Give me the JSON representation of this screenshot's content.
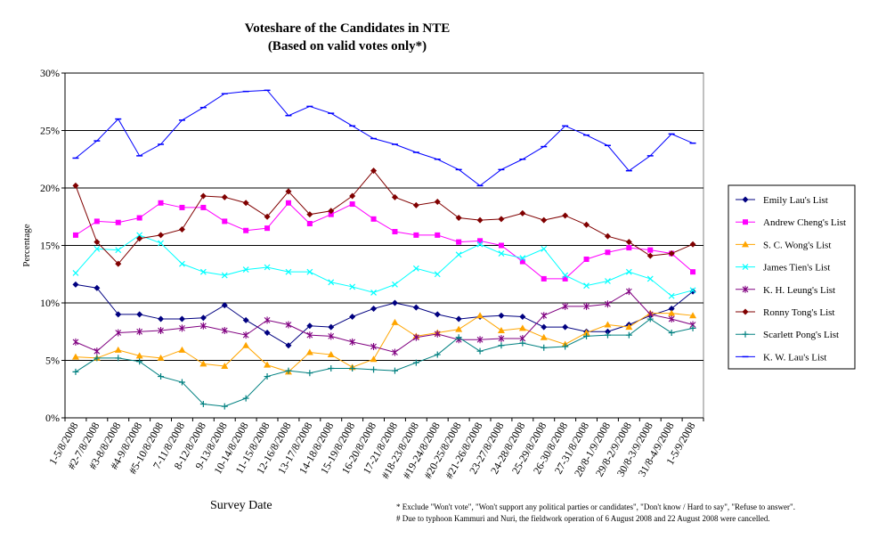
{
  "chart_data": {
    "type": "line",
    "title": "Voteshare of the Candidates in NTE",
    "subtitle": "(Based on valid votes only*)",
    "xlabel": "Survey Date",
    "ylabel": "Percentage",
    "ylim": [
      0,
      30
    ],
    "yticks": [
      "0%",
      "5%",
      "10%",
      "15%",
      "20%",
      "25%",
      "30%"
    ],
    "grid": "horizontal",
    "legend_position": "right",
    "categories": [
      "1-5/8/2008",
      "#2-7/8/2008",
      "#3-8/8/2008",
      "#4-9/8/2008",
      "#5-10/8/2008",
      "7-11/8/2008",
      "8-12/8/2008",
      "9-13/8/2008",
      "10-14/8/2008",
      "11-15/8/2008",
      "12-16/8/2008",
      "13-17/8/2008",
      "14-18/8/2008",
      "15-19/8/2008",
      "16-20/8/2008",
      "17-21/8/2008",
      "#18-23/8/2008",
      "#19-24/8/2008",
      "#20-25/8/2008",
      "#21-26/8/2008",
      "23-27/8/2008",
      "24-28/8/2008",
      "25-29/8/2008",
      "26-30/8/2008",
      "27-31/8/2008",
      "28/8-1/9/2008",
      "29/8-2/9/2008",
      "30/8-3/9/2008",
      "31/8-4/9/2008",
      "1-5/9/2008"
    ],
    "series": [
      {
        "name": "Emily Lau's List",
        "color": "#000080",
        "marker": "diamond",
        "values": [
          11.6,
          11.3,
          9.0,
          9.0,
          8.6,
          8.6,
          8.7,
          9.8,
          8.5,
          7.4,
          6.3,
          8.0,
          7.9,
          8.8,
          9.5,
          10.0,
          9.6,
          9.0,
          8.6,
          8.8,
          8.9,
          8.8,
          7.9,
          7.9,
          7.5,
          7.5,
          8.1,
          8.9,
          9.5,
          11.0
        ]
      },
      {
        "name": "Andrew Cheng's List",
        "color": "#ff00ff",
        "marker": "square",
        "values": [
          15.9,
          17.1,
          17.0,
          17.4,
          18.7,
          18.3,
          18.3,
          17.1,
          16.3,
          16.5,
          18.7,
          16.9,
          17.7,
          18.6,
          17.3,
          16.2,
          15.9,
          15.9,
          15.3,
          15.4,
          15.0,
          13.6,
          12.1,
          12.1,
          13.8,
          14.4,
          14.8,
          14.6,
          14.3,
          12.7
        ]
      },
      {
        "name": "S. C. Wong's List",
        "color": "#ffa500",
        "marker": "triangle",
        "values": [
          5.3,
          5.2,
          5.9,
          5.4,
          5.2,
          5.9,
          4.7,
          4.5,
          6.3,
          4.6,
          4.0,
          5.7,
          5.5,
          4.4,
          5.1,
          8.3,
          7.1,
          7.4,
          7.7,
          8.9,
          7.6,
          7.8,
          7.0,
          6.4,
          7.4,
          8.1,
          7.9,
          9.1,
          9.1,
          8.9
        ]
      },
      {
        "name": "James Tien's List",
        "color": "#00ffff",
        "marker": "x",
        "values": [
          12.6,
          14.7,
          14.6,
          15.9,
          15.2,
          13.4,
          12.7,
          12.4,
          12.9,
          13.1,
          12.7,
          12.7,
          11.8,
          11.4,
          10.9,
          11.6,
          13.0,
          12.5,
          14.2,
          15.1,
          14.3,
          13.9,
          14.7,
          12.4,
          11.5,
          11.9,
          12.7,
          12.1,
          10.6,
          11.1
        ]
      },
      {
        "name": "K. H. Leung's List",
        "color": "#800080",
        "marker": "star",
        "values": [
          6.6,
          5.8,
          7.4,
          7.5,
          7.6,
          7.8,
          8.0,
          7.6,
          7.2,
          8.5,
          8.1,
          7.2,
          7.1,
          6.6,
          6.2,
          5.7,
          7.0,
          7.3,
          6.8,
          6.8,
          6.9,
          6.9,
          8.9,
          9.7,
          9.7,
          9.9,
          11.0,
          9.0,
          8.6,
          8.1
        ]
      },
      {
        "name": "Ronny Tong's List",
        "color": "#800000",
        "marker": "diamond",
        "values": [
          20.2,
          15.3,
          13.4,
          15.6,
          15.9,
          16.4,
          19.3,
          19.2,
          18.7,
          17.5,
          19.7,
          17.7,
          18.0,
          19.3,
          21.5,
          19.2,
          18.5,
          18.8,
          17.4,
          17.2,
          17.3,
          17.8,
          17.2,
          17.6,
          16.8,
          15.8,
          15.3,
          14.1,
          14.3,
          15.1
        ]
      },
      {
        "name": "Scarlett Pong's List",
        "color": "#008080",
        "marker": "plus",
        "values": [
          4.0,
          5.2,
          5.2,
          4.9,
          3.6,
          3.1,
          1.2,
          1.0,
          1.7,
          3.6,
          4.1,
          3.9,
          4.3,
          4.3,
          4.2,
          4.1,
          4.8,
          5.5,
          7.0,
          5.8,
          6.3,
          6.5,
          6.1,
          6.2,
          7.1,
          7.2,
          7.2,
          8.6,
          7.4,
          7.8
        ]
      },
      {
        "name": "K. W. Lau's List",
        "color": "#0000ff",
        "marker": "dash",
        "values": [
          22.6,
          24.1,
          26.0,
          22.8,
          23.8,
          25.9,
          27.0,
          28.2,
          28.4,
          28.5,
          26.3,
          27.1,
          26.5,
          25.4,
          24.3,
          23.8,
          23.1,
          22.5,
          21.6,
          20.2,
          21.6,
          22.5,
          23.6,
          25.4,
          24.6,
          23.7,
          21.5,
          22.8,
          24.7,
          23.9
        ]
      }
    ],
    "footnotes": [
      "* Exclude \"Won't vote\", \"Won't support any political parties or candidates\", \"Don't know / Hard to say\", \"Refuse to answer\".",
      "# Due to typhoon Kammuri and Nuri, the fieldwork operation of 6 August 2008 and 22 August 2008 were cancelled."
    ]
  }
}
